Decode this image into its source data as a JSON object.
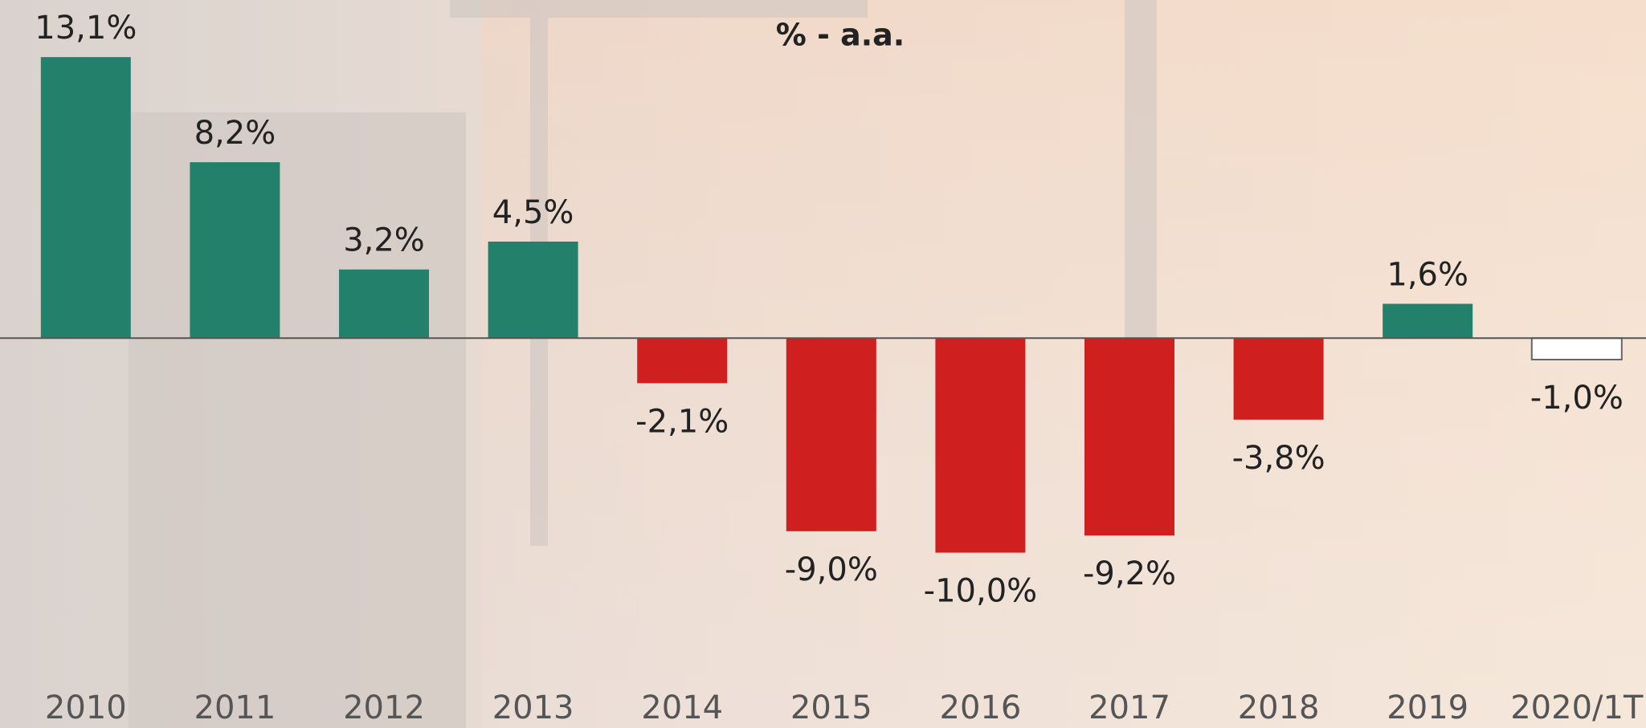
{
  "chart_data": {
    "type": "bar",
    "title": "% - a.a.",
    "categories": [
      "2010",
      "2011",
      "2012",
      "2013",
      "2014",
      "2015",
      "2016",
      "2017",
      "2018",
      "2019",
      "2020/1T"
    ],
    "values": [
      13.1,
      8.2,
      3.2,
      4.5,
      -2.1,
      -9.0,
      -10.0,
      -9.2,
      -3.8,
      1.6,
      -1.0
    ],
    "value_labels": [
      "13,1%",
      "8,2%",
      "3,2%",
      "4,5%",
      "-2,1%",
      "-9,0%",
      "-10,0%",
      "-9,2%",
      "-3,8%",
      "1,6%",
      "-1,0%"
    ],
    "colors": [
      "#23806a",
      "#23806a",
      "#23806a",
      "#23806a",
      "#cf1f1f",
      "#cf1f1f",
      "#cf1f1f",
      "#cf1f1f",
      "#cf1f1f",
      "#23806a",
      "#ffffff"
    ],
    "ylim": [
      -12,
      15.5
    ]
  }
}
